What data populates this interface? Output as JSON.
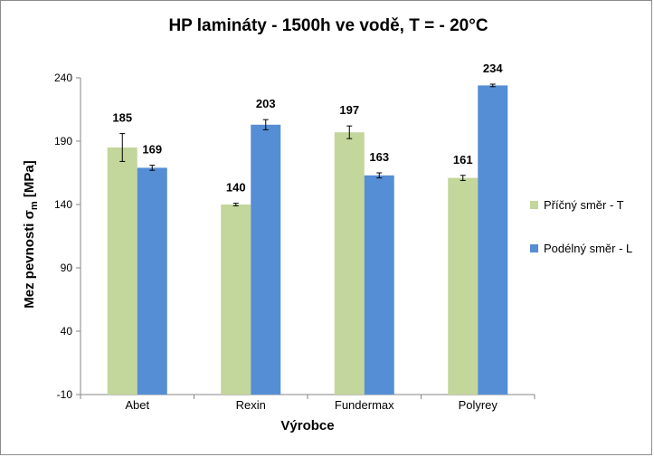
{
  "chart_data": {
    "type": "bar",
    "title": "HP lamináty - 1500h ve vodě, T = - 20°C",
    "xlabel": "Výrobce",
    "ylabel_main": "Mez pevnosti   σ",
    "ylabel_sub": "m",
    "ylabel_unit": " [MPa]",
    "ylim": [
      -10,
      240
    ],
    "yticks": [
      -10,
      40,
      90,
      140,
      190,
      240
    ],
    "categories": [
      "Abet",
      "Rexin",
      "Fundermax",
      "Polyrey"
    ],
    "series": [
      {
        "name": "Příčný směr - T",
        "color": "#c3d69b",
        "values": [
          185,
          140,
          197,
          161
        ],
        "errors": [
          11,
          1,
          5,
          2
        ]
      },
      {
        "name": "Podélný směr - L",
        "color": "#558ed5",
        "values": [
          169,
          203,
          163,
          234
        ],
        "errors": [
          2,
          4,
          2,
          1
        ]
      }
    ],
    "legend_position": "right",
    "grid": false
  }
}
